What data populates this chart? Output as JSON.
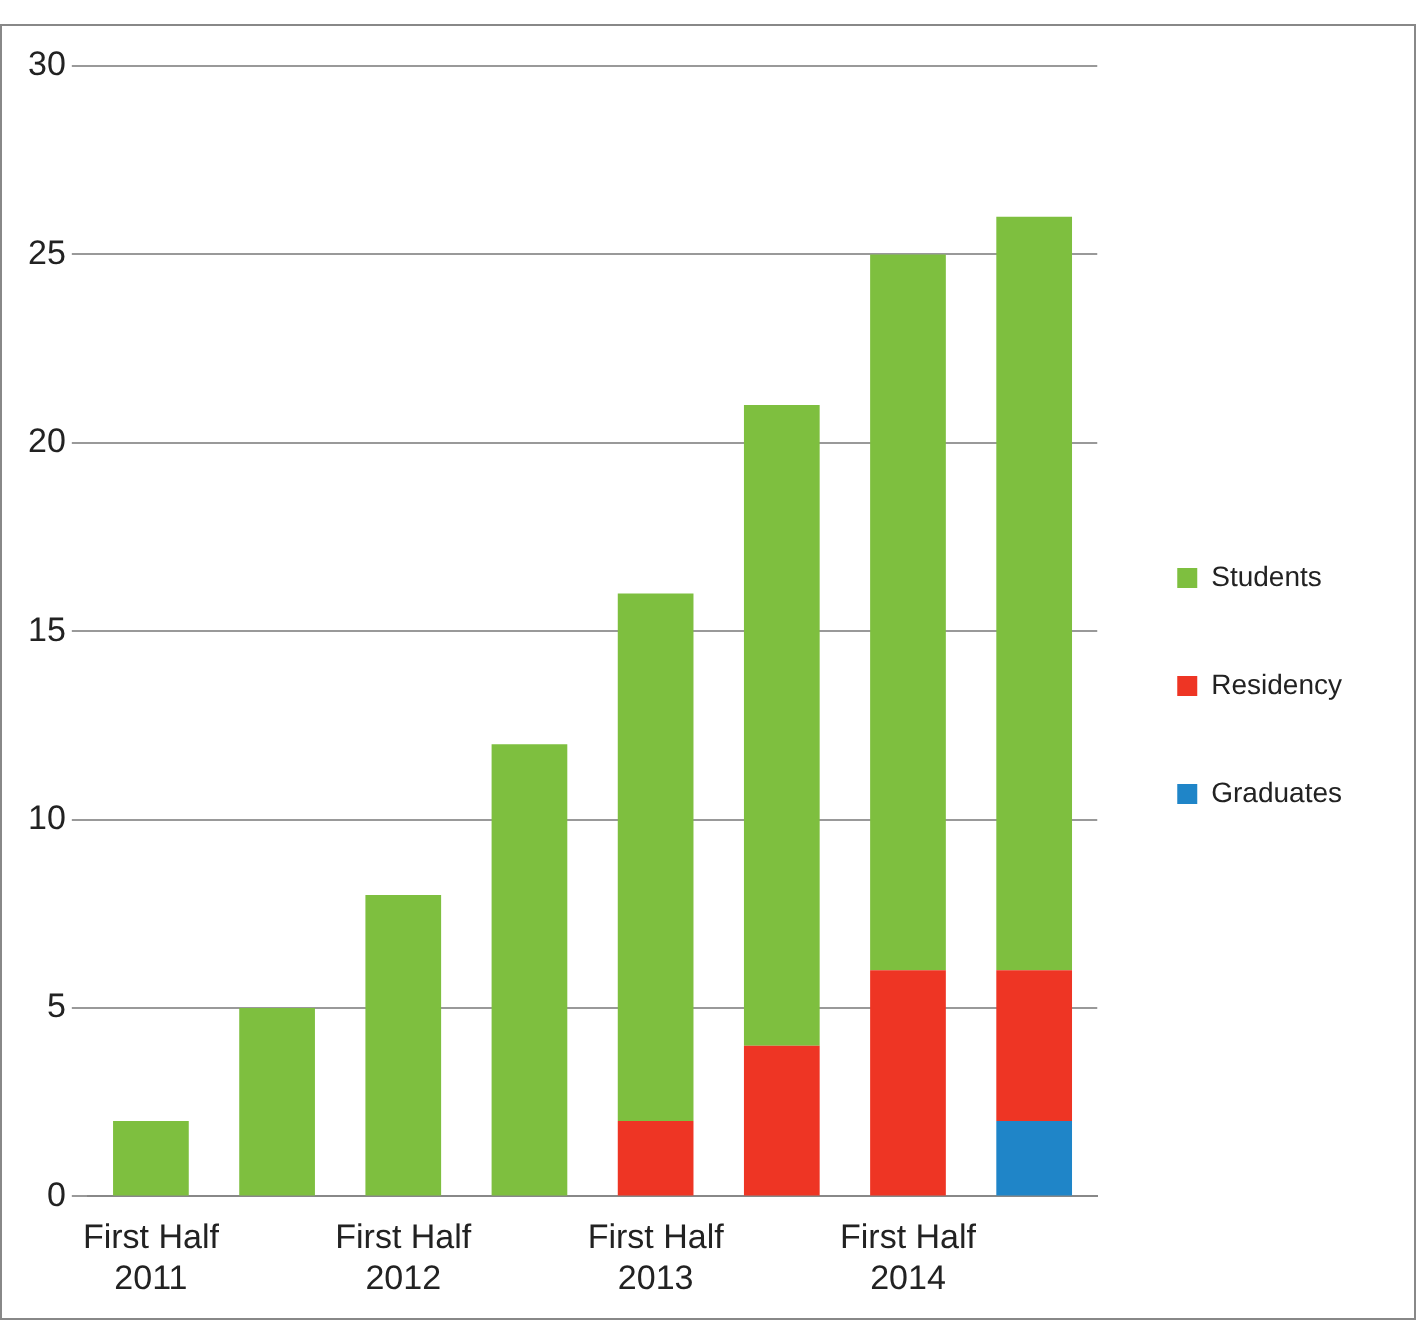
{
  "chart_data": {
    "type": "bar",
    "stacked": true,
    "categories": [
      "First Half 2011",
      null,
      "First Half 2012",
      null,
      "First Half 2013",
      null,
      "First Half 2014",
      null
    ],
    "series": [
      {
        "name": "Graduates",
        "color": "#1f85c8",
        "values": [
          0,
          0,
          0,
          0,
          0,
          0,
          0,
          2
        ]
      },
      {
        "name": "Residency",
        "color": "#ee3524",
        "values": [
          0,
          0,
          0,
          0,
          2,
          4,
          6,
          4
        ]
      },
      {
        "name": "Students",
        "color": "#7ebf3f",
        "values": [
          2,
          5,
          8,
          12,
          14,
          17,
          19,
          20
        ]
      }
    ],
    "ylim": [
      0,
      30
    ],
    "yticks": [
      0,
      5,
      10,
      15,
      20,
      25,
      30
    ],
    "grid": "y",
    "legend": "right"
  }
}
